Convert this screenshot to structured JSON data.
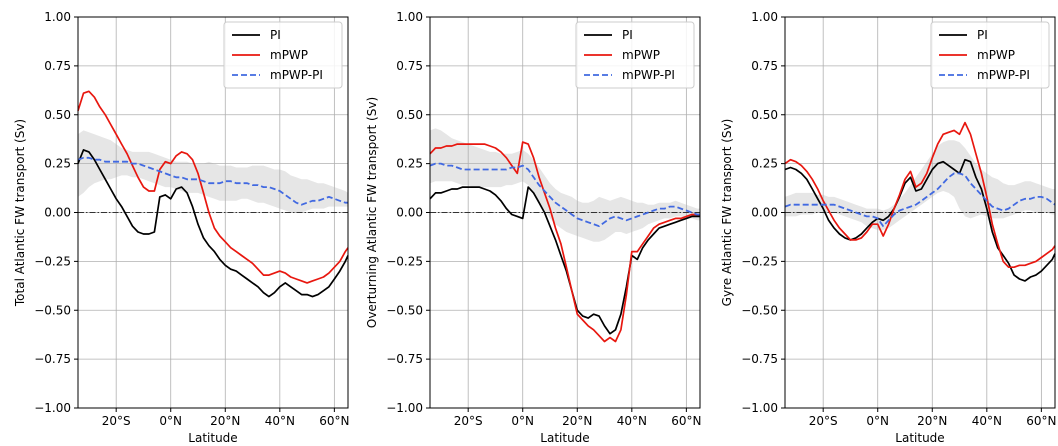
{
  "colors": {
    "PI": "#000000",
    "mPWP": "#e8170f",
    "mPWP-PI": "#4169e1",
    "spread": "#e6e6e6"
  },
  "chart_data": [
    {
      "type": "line",
      "xlabel": "Latitude",
      "ylabel": "Total Atlantic FW transport (Sv)",
      "xlim": [
        -34,
        65
      ],
      "ylim": [
        -1.0,
        1.0
      ],
      "xticks": [
        -20,
        0,
        20,
        40,
        60
      ],
      "xtick_labels": [
        "20°S",
        "0°N",
        "20°N",
        "40°N",
        "60°N"
      ],
      "yticks": [
        -1.0,
        -0.75,
        -0.5,
        -0.25,
        0.0,
        0.25,
        0.5,
        0.75,
        1.0
      ],
      "ytick_labels": [
        "−1.00",
        "−0.75",
        "−0.50",
        "−0.25",
        "0.00",
        "0.25",
        "0.50",
        "0.75",
        "1.00"
      ],
      "grid": true,
      "legend": "top-right",
      "x": [
        -34,
        -32,
        -30,
        -28,
        -26,
        -24,
        -22,
        -20,
        -18,
        -16,
        -14,
        -12,
        -10,
        -8,
        -6,
        -4,
        -2,
        0,
        2,
        4,
        6,
        8,
        10,
        12,
        14,
        16,
        18,
        20,
        22,
        24,
        26,
        28,
        30,
        32,
        34,
        36,
        38,
        40,
        42,
        44,
        46,
        48,
        50,
        52,
        54,
        56,
        58,
        60,
        62,
        64,
        65
      ],
      "series": [
        {
          "name": "PI",
          "style": "solid",
          "values": [
            0.25,
            0.32,
            0.31,
            0.27,
            0.22,
            0.17,
            0.12,
            0.07,
            0.03,
            -0.02,
            -0.07,
            -0.1,
            -0.11,
            -0.11,
            -0.1,
            0.08,
            0.09,
            0.07,
            0.12,
            0.13,
            0.1,
            0.03,
            -0.06,
            -0.13,
            -0.17,
            -0.2,
            -0.24,
            -0.27,
            -0.29,
            -0.3,
            -0.32,
            -0.34,
            -0.36,
            -0.38,
            -0.41,
            -0.43,
            -0.41,
            -0.38,
            -0.36,
            -0.38,
            -0.4,
            -0.42,
            -0.42,
            -0.43,
            -0.42,
            -0.4,
            -0.38,
            -0.34,
            -0.3,
            -0.25,
            -0.22
          ]
        },
        {
          "name": "mPWP",
          "style": "solid",
          "values": [
            0.52,
            0.61,
            0.62,
            0.59,
            0.54,
            0.5,
            0.45,
            0.4,
            0.35,
            0.3,
            0.24,
            0.18,
            0.13,
            0.11,
            0.11,
            0.22,
            0.26,
            0.25,
            0.29,
            0.31,
            0.3,
            0.27,
            0.2,
            0.1,
            0.0,
            -0.08,
            -0.12,
            -0.15,
            -0.18,
            -0.2,
            -0.22,
            -0.24,
            -0.26,
            -0.29,
            -0.32,
            -0.32,
            -0.31,
            -0.3,
            -0.31,
            -0.33,
            -0.34,
            -0.35,
            -0.36,
            -0.35,
            -0.34,
            -0.33,
            -0.31,
            -0.28,
            -0.25,
            -0.2,
            -0.18
          ]
        },
        {
          "name": "mPWP-PI",
          "style": "dashed",
          "values": [
            0.27,
            0.28,
            0.28,
            0.27,
            0.27,
            0.26,
            0.26,
            0.26,
            0.26,
            0.26,
            0.25,
            0.25,
            0.24,
            0.23,
            0.22,
            0.21,
            0.2,
            0.19,
            0.18,
            0.18,
            0.17,
            0.17,
            0.17,
            0.16,
            0.15,
            0.15,
            0.15,
            0.16,
            0.16,
            0.15,
            0.15,
            0.15,
            0.14,
            0.14,
            0.13,
            0.13,
            0.12,
            0.11,
            0.09,
            0.07,
            0.05,
            0.04,
            0.05,
            0.06,
            0.06,
            0.07,
            0.08,
            0.07,
            0.06,
            0.05,
            0.05
          ]
        }
      ],
      "band": {
        "upper": [
          0.4,
          0.42,
          0.41,
          0.4,
          0.39,
          0.38,
          0.37,
          0.35,
          0.33,
          0.32,
          0.31,
          0.31,
          0.31,
          0.31,
          0.3,
          0.29,
          0.28,
          0.27,
          0.26,
          0.26,
          0.26,
          0.25,
          0.25,
          0.25,
          0.26,
          0.25,
          0.24,
          0.24,
          0.24,
          0.23,
          0.23,
          0.23,
          0.24,
          0.24,
          0.24,
          0.23,
          0.22,
          0.22,
          0.21,
          0.19,
          0.18,
          0.17,
          0.17,
          0.16,
          0.15,
          0.15,
          0.14,
          0.13,
          0.12,
          0.11,
          0.1
        ],
        "lower": [
          0.08,
          0.1,
          0.13,
          0.15,
          0.16,
          0.17,
          0.17,
          0.18,
          0.19,
          0.19,
          0.18,
          0.18,
          0.17,
          0.16,
          0.15,
          0.14,
          0.13,
          0.13,
          0.12,
          0.11,
          0.1,
          0.1,
          0.1,
          0.09,
          0.08,
          0.07,
          0.06,
          0.06,
          0.06,
          0.06,
          0.07,
          0.07,
          0.06,
          0.05,
          0.05,
          0.04,
          0.03,
          0.02,
          0.01,
          0.0,
          0.0,
          0.0,
          0.01,
          0.02,
          0.02,
          0.02,
          0.03,
          0.03,
          0.03,
          0.03,
          0.03
        ]
      }
    },
    {
      "type": "line",
      "xlabel": "Latitude",
      "ylabel": "Overturning Atlantic FW transport (Sv)",
      "xlim": [
        -34,
        65
      ],
      "ylim": [
        -1.0,
        1.0
      ],
      "xticks": [
        -20,
        0,
        20,
        40,
        60
      ],
      "xtick_labels": [
        "20°S",
        "0°N",
        "20°N",
        "40°N",
        "60°N"
      ],
      "yticks": [
        -1.0,
        -0.75,
        -0.5,
        -0.25,
        0.0,
        0.25,
        0.5,
        0.75,
        1.0
      ],
      "ytick_labels": [
        "−1.00",
        "−0.75",
        "−0.50",
        "−0.25",
        "0.00",
        "0.25",
        "0.50",
        "0.75",
        "1.00"
      ],
      "grid": true,
      "legend": "top-right",
      "x": [
        -34,
        -32,
        -30,
        -28,
        -26,
        -24,
        -22,
        -20,
        -18,
        -16,
        -14,
        -12,
        -10,
        -8,
        -6,
        -4,
        -2,
        0,
        2,
        4,
        6,
        8,
        10,
        12,
        14,
        16,
        18,
        20,
        22,
        24,
        26,
        28,
        30,
        32,
        34,
        36,
        38,
        40,
        42,
        44,
        46,
        48,
        50,
        52,
        54,
        56,
        58,
        60,
        62,
        64,
        65
      ],
      "series": [
        {
          "name": "PI",
          "style": "solid",
          "values": [
            0.07,
            0.1,
            0.1,
            0.11,
            0.12,
            0.12,
            0.13,
            0.13,
            0.13,
            0.13,
            0.12,
            0.11,
            0.09,
            0.06,
            0.02,
            -0.01,
            -0.02,
            -0.03,
            0.13,
            0.1,
            0.05,
            0.0,
            -0.07,
            -0.14,
            -0.22,
            -0.3,
            -0.4,
            -0.5,
            -0.53,
            -0.54,
            -0.52,
            -0.53,
            -0.58,
            -0.62,
            -0.6,
            -0.52,
            -0.38,
            -0.22,
            -0.24,
            -0.18,
            -0.14,
            -0.11,
            -0.08,
            -0.07,
            -0.06,
            -0.05,
            -0.04,
            -0.03,
            -0.02,
            -0.02,
            -0.02
          ]
        },
        {
          "name": "mPWP",
          "style": "solid",
          "values": [
            0.3,
            0.33,
            0.33,
            0.34,
            0.34,
            0.35,
            0.35,
            0.35,
            0.35,
            0.35,
            0.35,
            0.34,
            0.33,
            0.31,
            0.28,
            0.24,
            0.2,
            0.36,
            0.35,
            0.28,
            0.18,
            0.1,
            0.02,
            -0.08,
            -0.16,
            -0.28,
            -0.4,
            -0.52,
            -0.55,
            -0.58,
            -0.6,
            -0.63,
            -0.66,
            -0.64,
            -0.66,
            -0.6,
            -0.42,
            -0.2,
            -0.2,
            -0.16,
            -0.12,
            -0.08,
            -0.06,
            -0.05,
            -0.04,
            -0.03,
            -0.03,
            -0.02,
            -0.01,
            -0.01,
            -0.01
          ]
        },
        {
          "name": "mPWP-PI",
          "style": "dashed",
          "values": [
            0.24,
            0.25,
            0.25,
            0.24,
            0.24,
            0.23,
            0.22,
            0.22,
            0.22,
            0.22,
            0.22,
            0.22,
            0.22,
            0.22,
            0.22,
            0.23,
            0.23,
            0.24,
            0.22,
            0.18,
            0.14,
            0.11,
            0.08,
            0.05,
            0.03,
            0.01,
            -0.01,
            -0.03,
            -0.04,
            -0.05,
            -0.06,
            -0.07,
            -0.05,
            -0.03,
            -0.02,
            -0.03,
            -0.04,
            -0.03,
            -0.02,
            -0.01,
            0.0,
            0.01,
            0.02,
            0.02,
            0.03,
            0.03,
            0.02,
            0.01,
            0.0,
            -0.01,
            -0.01
          ]
        }
      ],
      "band": {
        "upper": [
          0.42,
          0.43,
          0.42,
          0.4,
          0.38,
          0.37,
          0.36,
          0.35,
          0.34,
          0.33,
          0.32,
          0.31,
          0.31,
          0.3,
          0.3,
          0.3,
          0.31,
          0.32,
          0.3,
          0.27,
          0.23,
          0.19,
          0.15,
          0.12,
          0.1,
          0.09,
          0.08,
          0.06,
          0.05,
          0.05,
          0.06,
          0.08,
          0.07,
          0.06,
          0.07,
          0.08,
          0.07,
          0.06,
          0.05,
          0.05,
          0.04,
          0.04,
          0.05,
          0.05,
          0.05,
          0.06,
          0.05,
          0.04,
          0.03,
          0.02,
          0.02
        ],
        "lower": [
          0.15,
          0.16,
          0.16,
          0.16,
          0.16,
          0.15,
          0.14,
          0.14,
          0.13,
          0.13,
          0.13,
          0.13,
          0.13,
          0.13,
          0.14,
          0.14,
          0.15,
          0.16,
          0.14,
          0.1,
          0.05,
          0.01,
          -0.03,
          -0.06,
          -0.08,
          -0.1,
          -0.11,
          -0.12,
          -0.13,
          -0.14,
          -0.15,
          -0.15,
          -0.14,
          -0.12,
          -0.1,
          -0.1,
          -0.11,
          -0.1,
          -0.09,
          -0.08,
          -0.06,
          -0.05,
          -0.04,
          -0.03,
          -0.03,
          -0.02,
          -0.02,
          -0.03,
          -0.03,
          -0.04,
          -0.04
        ]
      }
    },
    {
      "type": "line",
      "xlabel": "Latitude",
      "ylabel": "Gyre Atlantic FW transport (Sv)",
      "xlim": [
        -34,
        65
      ],
      "ylim": [
        -1.0,
        1.0
      ],
      "xticks": [
        -20,
        0,
        20,
        40,
        60
      ],
      "xtick_labels": [
        "20°S",
        "0°N",
        "20°N",
        "40°N",
        "60°N"
      ],
      "yticks": [
        -1.0,
        -0.75,
        -0.5,
        -0.25,
        0.0,
        0.25,
        0.5,
        0.75,
        1.0
      ],
      "ytick_labels": [
        "−1.00",
        "−0.75",
        "−0.50",
        "−0.25",
        "0.00",
        "0.25",
        "0.50",
        "0.75",
        "1.00"
      ],
      "grid": true,
      "legend": "top-right",
      "x": [
        -34,
        -32,
        -30,
        -28,
        -26,
        -24,
        -22,
        -20,
        -18,
        -16,
        -14,
        -12,
        -10,
        -8,
        -6,
        -4,
        -2,
        0,
        2,
        4,
        6,
        8,
        10,
        12,
        14,
        16,
        18,
        20,
        22,
        24,
        26,
        28,
        30,
        32,
        34,
        36,
        38,
        40,
        42,
        44,
        46,
        48,
        50,
        52,
        54,
        56,
        58,
        60,
        62,
        64,
        65
      ],
      "series": [
        {
          "name": "PI",
          "style": "solid",
          "values": [
            0.22,
            0.23,
            0.22,
            0.2,
            0.17,
            0.12,
            0.07,
            0.02,
            -0.04,
            -0.08,
            -0.11,
            -0.13,
            -0.14,
            -0.13,
            -0.11,
            -0.08,
            -0.05,
            -0.03,
            -0.04,
            -0.02,
            0.02,
            0.08,
            0.15,
            0.18,
            0.11,
            0.12,
            0.17,
            0.22,
            0.25,
            0.26,
            0.24,
            0.22,
            0.2,
            0.27,
            0.26,
            0.18,
            0.12,
            0.02,
            -0.1,
            -0.18,
            -0.22,
            -0.26,
            -0.32,
            -0.34,
            -0.35,
            -0.33,
            -0.32,
            -0.3,
            -0.27,
            -0.24,
            -0.21
          ]
        },
        {
          "name": "mPWP",
          "style": "solid",
          "values": [
            0.25,
            0.27,
            0.26,
            0.24,
            0.21,
            0.17,
            0.12,
            0.06,
            0.01,
            -0.04,
            -0.08,
            -0.11,
            -0.14,
            -0.14,
            -0.13,
            -0.1,
            -0.06,
            -0.06,
            -0.12,
            -0.06,
            0.02,
            0.09,
            0.17,
            0.21,
            0.13,
            0.15,
            0.2,
            0.28,
            0.35,
            0.4,
            0.41,
            0.42,
            0.4,
            0.46,
            0.4,
            0.3,
            0.2,
            0.08,
            -0.06,
            -0.16,
            -0.25,
            -0.28,
            -0.28,
            -0.27,
            -0.27,
            -0.26,
            -0.25,
            -0.23,
            -0.21,
            -0.19,
            -0.17
          ]
        },
        {
          "name": "mPWP-PI",
          "style": "dashed",
          "values": [
            0.03,
            0.04,
            0.04,
            0.04,
            0.04,
            0.04,
            0.04,
            0.04,
            0.04,
            0.04,
            0.03,
            0.02,
            0.01,
            0.0,
            -0.01,
            -0.02,
            -0.02,
            -0.03,
            -0.07,
            -0.04,
            -0.01,
            0.01,
            0.02,
            0.03,
            0.04,
            0.06,
            0.08,
            0.1,
            0.12,
            0.15,
            0.18,
            0.2,
            0.2,
            0.19,
            0.15,
            0.12,
            0.09,
            0.06,
            0.03,
            0.02,
            0.01,
            0.02,
            0.04,
            0.06,
            0.07,
            0.07,
            0.08,
            0.08,
            0.07,
            0.05,
            0.04
          ]
        }
      ],
      "band": {
        "upper": [
          0.08,
          0.09,
          0.1,
          0.1,
          0.1,
          0.1,
          0.09,
          0.09,
          0.08,
          0.08,
          0.07,
          0.06,
          0.05,
          0.04,
          0.03,
          0.02,
          0.02,
          0.02,
          0.01,
          0.02,
          0.04,
          0.07,
          0.1,
          0.14,
          0.18,
          0.22,
          0.26,
          0.3,
          0.34,
          0.36,
          0.37,
          0.37,
          0.36,
          0.33,
          0.29,
          0.25,
          0.22,
          0.2,
          0.18,
          0.17,
          0.15,
          0.14,
          0.14,
          0.15,
          0.16,
          0.16,
          0.15,
          0.14,
          0.13,
          0.12,
          0.12
        ],
        "lower": [
          -0.02,
          -0.02,
          -0.02,
          -0.01,
          -0.01,
          -0.01,
          0.0,
          0.0,
          0.0,
          0.0,
          -0.01,
          -0.02,
          -0.03,
          -0.04,
          -0.05,
          -0.07,
          -0.08,
          -0.09,
          -0.09,
          -0.08,
          -0.06,
          -0.04,
          -0.02,
          0.0,
          0.02,
          0.04,
          0.06,
          0.08,
          0.1,
          0.11,
          0.1,
          0.08,
          0.02,
          -0.02,
          -0.03,
          -0.02,
          -0.01,
          -0.02,
          -0.03,
          -0.03,
          -0.03,
          -0.02,
          -0.01,
          0.0,
          0.01,
          0.01,
          0.0,
          0.0,
          0.0,
          -0.01,
          -0.01
        ]
      }
    }
  ]
}
